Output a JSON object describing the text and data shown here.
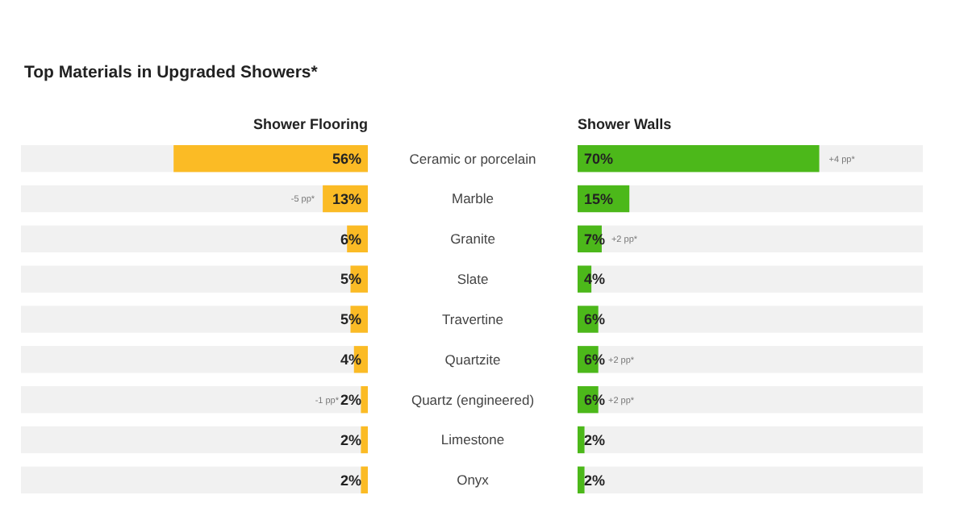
{
  "chart_data": [
    {
      "type": "bar",
      "orientation": "horizontal",
      "title": "Top Materials in Upgraded Showers*",
      "subtitle": "Shower Flooring",
      "categories": [
        "Ceramic or porcelain",
        "Marble",
        "Granite",
        "Slate",
        "Travertine",
        "Quartzite",
        "Quartz (engineered)",
        "Limestone",
        "Onyx"
      ],
      "values": [
        56,
        13,
        6,
        5,
        5,
        4,
        2,
        2,
        2
      ],
      "value_labels": [
        "56%",
        "13%",
        "6%",
        "5%",
        "5%",
        "4%",
        "2%",
        "2%",
        "2%"
      ],
      "color": "#fbbb25",
      "xlim": [
        100,
        0
      ],
      "tick_labels": "y",
      "annotations": [
        {
          "text": "-5 pp*",
          "x": 13,
          "y": "Marble"
        },
        {
          "text": "-1 pp*",
          "x": 2,
          "y": "Quartz (engineered)"
        }
      ]
    },
    {
      "type": "bar",
      "orientation": "horizontal",
      "title": "Shower Walls",
      "categories": [
        "Ceramic or porcelain",
        "Marble",
        "Granite",
        "Slate",
        "Travertine",
        "Quartzite",
        "Quartz (engineered)",
        "Limestone",
        "Onyx"
      ],
      "values": [
        70,
        15,
        7,
        4,
        6,
        6,
        6,
        2,
        2
      ],
      "value_labels": [
        "70%",
        "15%",
        "7%",
        "4%",
        "6%",
        "6%",
        "6%",
        "2%",
        "2%"
      ],
      "color": "#4cb81a",
      "xlim": [
        0,
        100
      ],
      "tick_labels": false,
      "annotations": [
        {
          "text": "+4 pp*",
          "x": 70,
          "y": "Ceramic or porcelain"
        },
        {
          "text": "+2 pp*",
          "x": 7,
          "y": "Granite"
        },
        {
          "text": "+2 pp*",
          "x": 6,
          "y": "Quartzite"
        },
        {
          "text": "+2 pp*",
          "x": 6,
          "y": "Quartz (engineered)"
        }
      ]
    }
  ]
}
